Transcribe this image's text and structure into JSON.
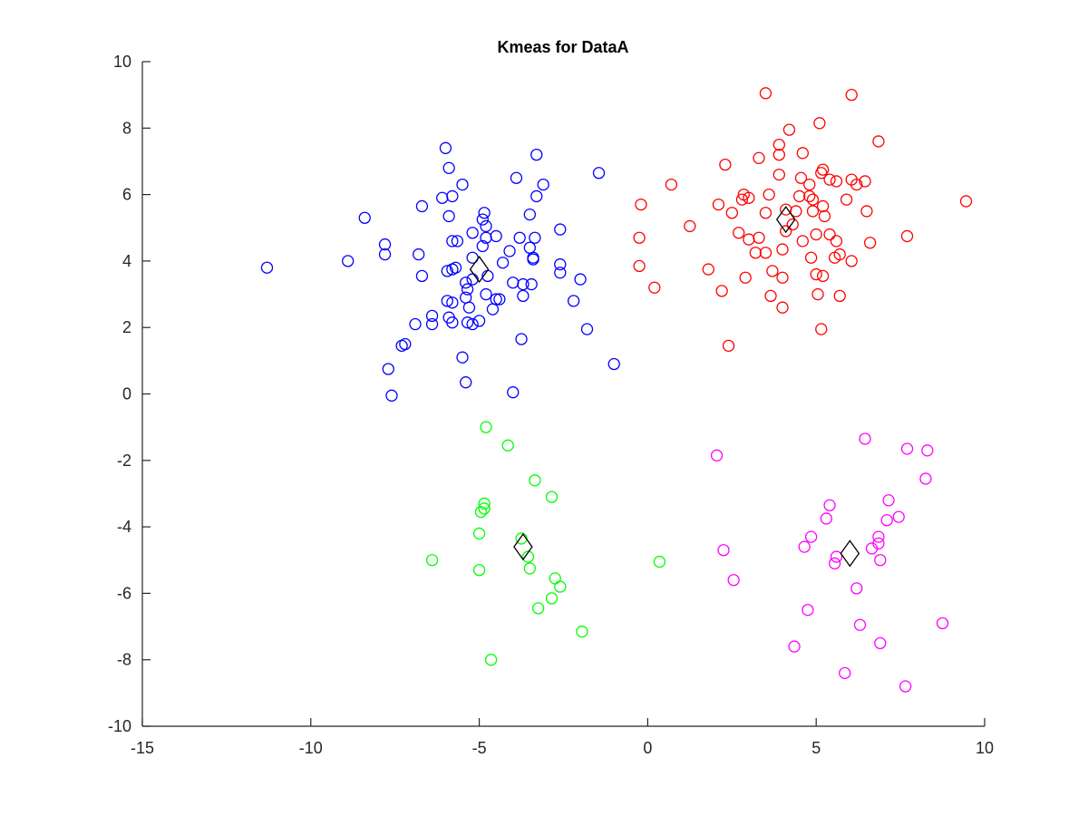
{
  "chart_data": {
    "type": "scatter",
    "title": "Kmeas for DataA",
    "xlabel": "",
    "ylabel": "",
    "xlim": [
      -15,
      10
    ],
    "ylim": [
      -10,
      10
    ],
    "xticks": [
      -15,
      -10,
      -5,
      0,
      5,
      10
    ],
    "yticks": [
      -10,
      -8,
      -6,
      -4,
      -2,
      0,
      2,
      4,
      6,
      8,
      10
    ],
    "grid": false,
    "legend": "none",
    "marker": "open-circle",
    "centroid_marker": "open-diamond",
    "series": [
      {
        "color": "#0000ff",
        "points": [
          [
            -11.3,
            3.8
          ],
          [
            -8.9,
            4.0
          ],
          [
            -8.4,
            5.3
          ],
          [
            -7.8,
            4.5
          ],
          [
            -7.8,
            4.2
          ],
          [
            -7.7,
            0.75
          ],
          [
            -7.6,
            -0.05
          ],
          [
            -7.2,
            1.5
          ],
          [
            -7.3,
            1.45
          ],
          [
            -6.9,
            2.1
          ],
          [
            -6.8,
            4.2
          ],
          [
            -6.7,
            3.55
          ],
          [
            -6.7,
            5.65
          ],
          [
            -6.4,
            2.35
          ],
          [
            -6.4,
            2.1
          ],
          [
            -6.1,
            5.9
          ],
          [
            -6.0,
            7.4
          ],
          [
            -5.9,
            6.8
          ],
          [
            -5.9,
            5.35
          ],
          [
            -5.95,
            3.7
          ],
          [
            -5.8,
            3.75
          ],
          [
            -5.7,
            3.8
          ],
          [
            -5.95,
            2.8
          ],
          [
            -5.8,
            2.75
          ],
          [
            -5.9,
            2.3
          ],
          [
            -5.8,
            2.15
          ],
          [
            -5.8,
            5.95
          ],
          [
            -5.8,
            4.6
          ],
          [
            -5.65,
            4.6
          ],
          [
            -5.5,
            6.3
          ],
          [
            -5.4,
            3.35
          ],
          [
            -5.35,
            3.15
          ],
          [
            -5.4,
            2.9
          ],
          [
            -5.3,
            2.6
          ],
          [
            -5.35,
            2.15
          ],
          [
            -5.2,
            2.1
          ],
          [
            -5.0,
            2.2
          ],
          [
            -5.2,
            3.45
          ],
          [
            -5.2,
            4.1
          ],
          [
            -5.2,
            4.85
          ],
          [
            -5.5,
            1.1
          ],
          [
            -5.4,
            0.35
          ],
          [
            -4.9,
            5.25
          ],
          [
            -4.85,
            5.45
          ],
          [
            -4.8,
            5.05
          ],
          [
            -4.9,
            4.45
          ],
          [
            -4.8,
            4.7
          ],
          [
            -4.75,
            3.55
          ],
          [
            -4.8,
            3.0
          ],
          [
            -4.6,
            2.55
          ],
          [
            -4.5,
            2.85
          ],
          [
            -4.4,
            2.85
          ],
          [
            -4.5,
            4.75
          ],
          [
            -4.3,
            3.95
          ],
          [
            -4.1,
            4.3
          ],
          [
            -4.0,
            3.35
          ],
          [
            -3.9,
            6.5
          ],
          [
            -3.8,
            4.7
          ],
          [
            -3.7,
            3.3
          ],
          [
            -3.7,
            2.95
          ],
          [
            -3.75,
            1.65
          ],
          [
            -4.0,
            0.05
          ],
          [
            -3.5,
            4.4
          ],
          [
            -3.5,
            5.4
          ],
          [
            -3.4,
            4.1
          ],
          [
            -3.4,
            4.05
          ],
          [
            -3.35,
            4.7
          ],
          [
            -3.3,
            7.2
          ],
          [
            -3.3,
            5.95
          ],
          [
            -3.1,
            6.3
          ],
          [
            -2.6,
            4.95
          ],
          [
            -2.6,
            3.9
          ],
          [
            -2.6,
            3.65
          ],
          [
            -2.2,
            2.8
          ],
          [
            -2.0,
            3.45
          ],
          [
            -1.8,
            1.95
          ],
          [
            -1.45,
            6.65
          ],
          [
            -1.0,
            0.9
          ],
          [
            -3.45,
            3.3
          ]
        ]
      },
      {
        "color": "#ff0000",
        "points": [
          [
            -0.2,
            5.7
          ],
          [
            -0.25,
            4.7
          ],
          [
            -0.25,
            3.85
          ],
          [
            0.2,
            3.2
          ],
          [
            0.7,
            6.3
          ],
          [
            1.25,
            5.05
          ],
          [
            1.8,
            3.75
          ],
          [
            2.1,
            5.7
          ],
          [
            2.2,
            3.1
          ],
          [
            2.3,
            6.9
          ],
          [
            2.4,
            1.45
          ],
          [
            2.5,
            5.45
          ],
          [
            2.7,
            4.85
          ],
          [
            2.8,
            5.85
          ],
          [
            2.85,
            6.0
          ],
          [
            3.0,
            5.9
          ],
          [
            3.0,
            4.65
          ],
          [
            2.9,
            3.5
          ],
          [
            3.2,
            4.25
          ],
          [
            3.3,
            4.7
          ],
          [
            3.3,
            7.1
          ],
          [
            3.5,
            5.45
          ],
          [
            3.5,
            4.25
          ],
          [
            3.6,
            6.0
          ],
          [
            3.7,
            3.7
          ],
          [
            3.65,
            2.95
          ],
          [
            3.5,
            9.05
          ],
          [
            3.9,
            7.5
          ],
          [
            3.9,
            7.2
          ],
          [
            3.9,
            6.6
          ],
          [
            4.0,
            4.35
          ],
          [
            4.0,
            3.5
          ],
          [
            4.1,
            5.55
          ],
          [
            4.1,
            4.9
          ],
          [
            4.2,
            7.95
          ],
          [
            4.0,
            2.6
          ],
          [
            4.3,
            5.1
          ],
          [
            4.4,
            5.5
          ],
          [
            4.5,
            5.95
          ],
          [
            4.55,
            6.5
          ],
          [
            4.6,
            7.25
          ],
          [
            4.6,
            4.6
          ],
          [
            4.8,
            6.3
          ],
          [
            4.8,
            5.95
          ],
          [
            4.9,
            5.85
          ],
          [
            4.9,
            5.5
          ],
          [
            4.85,
            4.1
          ],
          [
            5.0,
            4.8
          ],
          [
            5.0,
            3.6
          ],
          [
            5.05,
            3.0
          ],
          [
            5.1,
            8.15
          ],
          [
            5.15,
            6.65
          ],
          [
            5.2,
            6.75
          ],
          [
            5.2,
            5.65
          ],
          [
            5.25,
            5.35
          ],
          [
            5.2,
            3.55
          ],
          [
            5.15,
            1.95
          ],
          [
            5.4,
            4.8
          ],
          [
            5.4,
            6.45
          ],
          [
            5.55,
            4.1
          ],
          [
            5.6,
            6.4
          ],
          [
            5.6,
            4.6
          ],
          [
            5.7,
            4.2
          ],
          [
            5.7,
            2.95
          ],
          [
            5.9,
            5.85
          ],
          [
            6.05,
            6.45
          ],
          [
            6.05,
            4.0
          ],
          [
            6.05,
            9.0
          ],
          [
            6.2,
            6.3
          ],
          [
            6.45,
            6.4
          ],
          [
            6.5,
            5.5
          ],
          [
            6.6,
            4.55
          ],
          [
            6.85,
            7.6
          ],
          [
            7.7,
            4.75
          ],
          [
            9.45,
            5.8
          ]
        ]
      },
      {
        "color": "#00ff00",
        "points": [
          [
            -6.4,
            -5.0
          ],
          [
            -5.0,
            -5.3
          ],
          [
            -5.0,
            -4.2
          ],
          [
            -4.95,
            -3.55
          ],
          [
            -4.85,
            -3.45
          ],
          [
            -4.85,
            -3.3
          ],
          [
            -4.8,
            -1.0
          ],
          [
            -4.65,
            -8.0
          ],
          [
            -4.15,
            -1.55
          ],
          [
            -3.75,
            -4.35
          ],
          [
            -3.55,
            -4.9
          ],
          [
            -3.5,
            -5.25
          ],
          [
            -3.35,
            -2.6
          ],
          [
            -3.25,
            -6.45
          ],
          [
            -2.85,
            -3.1
          ],
          [
            -2.85,
            -6.15
          ],
          [
            -2.75,
            -5.55
          ],
          [
            -2.6,
            -5.8
          ],
          [
            -1.95,
            -7.15
          ],
          [
            0.35,
            -5.05
          ]
        ]
      },
      {
        "color": "#ff00ff",
        "points": [
          [
            2.05,
            -1.85
          ],
          [
            2.25,
            -4.7
          ],
          [
            2.55,
            -5.6
          ],
          [
            4.35,
            -7.6
          ],
          [
            4.65,
            -4.6
          ],
          [
            4.75,
            -6.5
          ],
          [
            4.85,
            -4.3
          ],
          [
            5.3,
            -3.75
          ],
          [
            5.4,
            -3.35
          ],
          [
            5.55,
            -5.1
          ],
          [
            5.6,
            -4.9
          ],
          [
            5.85,
            -8.4
          ],
          [
            6.2,
            -5.85
          ],
          [
            6.3,
            -6.95
          ],
          [
            6.45,
            -1.35
          ],
          [
            6.65,
            -4.65
          ],
          [
            6.85,
            -4.3
          ],
          [
            6.85,
            -4.5
          ],
          [
            6.9,
            -5.0
          ],
          [
            6.9,
            -7.5
          ],
          [
            7.1,
            -3.8
          ],
          [
            7.15,
            -3.2
          ],
          [
            7.45,
            -3.7
          ],
          [
            7.65,
            -8.8
          ],
          [
            7.7,
            -1.65
          ],
          [
            8.25,
            -2.55
          ],
          [
            8.3,
            -1.7
          ],
          [
            8.75,
            -6.9
          ]
        ]
      }
    ],
    "centroids": [
      [
        -5.0,
        3.75
      ],
      [
        4.1,
        5.25
      ],
      [
        -3.7,
        -4.6
      ],
      [
        6.0,
        -4.8
      ]
    ]
  }
}
